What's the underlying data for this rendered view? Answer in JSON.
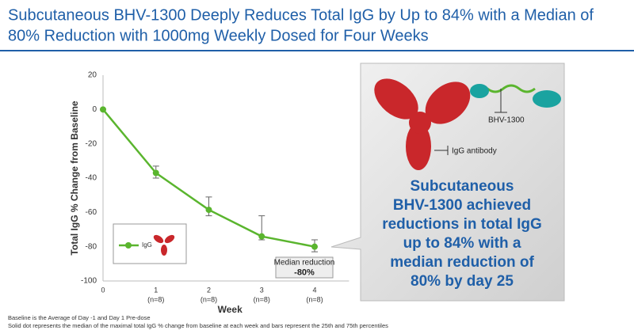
{
  "header": {
    "title": [
      "Subcutaneous BHV-1300 Deeply Reduces Total IgG by Up to 84% with a Median of",
      "80% Reduction with 1000mg Weekly Dosed for Four Weeks"
    ]
  },
  "chart_data": {
    "type": "line",
    "x": [
      0,
      1,
      2,
      3,
      4
    ],
    "xlim": [
      0,
      4.5
    ],
    "xticks": [
      0,
      1,
      2,
      3,
      4
    ],
    "xtick_notes": [
      null,
      "(n=8)",
      "(n=8)",
      "(n=8)",
      "(n=8)"
    ],
    "ylim": [
      -100,
      20
    ],
    "yticks": [
      -100,
      -80,
      -60,
      -40,
      -20,
      0,
      20
    ],
    "xlabel": "Week",
    "ylabel": "Total IgG % Change from Baseline",
    "series": [
      {
        "name": "IgG",
        "color": "#5ab52e",
        "values": [
          0,
          -37,
          -58.5,
          -74,
          -80
        ],
        "upper": [
          null,
          -33,
          -51,
          -62,
          -76
        ],
        "lower": [
          null,
          -40,
          -62,
          -76,
          -83
        ]
      }
    ],
    "annotations": [
      {
        "text": "Median reduction",
        "value": -80,
        "value_label": "-80%"
      }
    ],
    "notes": [
      "Baseline is the Average of Day -1 and Day 1 Pre-dose",
      "Solid dot represents the median of the maximal total IgG % change from baseline at each week and bars represent the 25th and 75th percentiles"
    ]
  },
  "callout": {
    "labels": [
      "BHV-1300",
      "IgG antibody"
    ],
    "lines": [
      "Subcutaneous",
      "BHV-1300 achieved",
      "reductions in total IgG",
      "up to 84% with a",
      "median reduction of",
      "80% by day 25"
    ]
  }
}
